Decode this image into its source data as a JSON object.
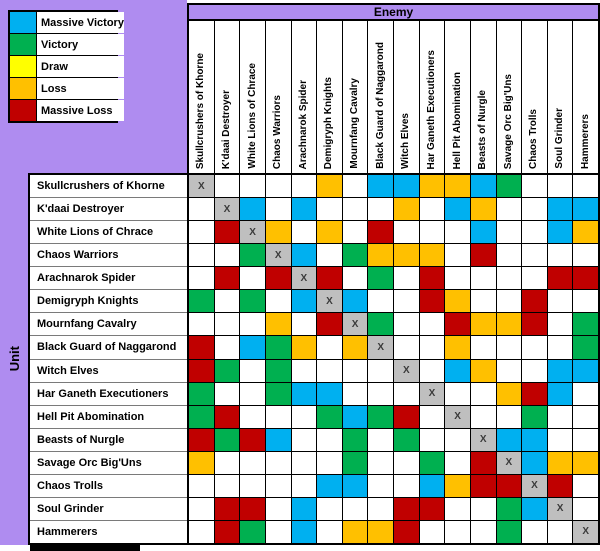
{
  "titles": {
    "enemy": "Enemy",
    "unit": "Unit"
  },
  "legend": [
    {
      "code": "MV",
      "label": "Massive Victory",
      "color": "#00B0F0"
    },
    {
      "code": "V",
      "label": "Victory",
      "color": "#00B050"
    },
    {
      "code": "D",
      "label": "Draw",
      "color": "#FFFF00"
    },
    {
      "code": "L",
      "label": "Loss",
      "color": "#FFC000"
    },
    {
      "code": "ML",
      "label": "Massive Loss",
      "color": "#C00000"
    }
  ],
  "self_marker": "X",
  "colors": {
    "MV": "#00B0F0",
    "V": "#00B050",
    "D": "#FFFF00",
    "L": "#FFC000",
    "ML": "#C00000",
    "X": "#BFBFBF",
    "": "#FFFFFF",
    "header_purple": "#AF8CF0",
    "grid_line": "#000000"
  },
  "units": [
    "Skullcrushers of Khorne",
    "K'daai Destroyer",
    "White Lions of Chrace",
    "Chaos Warriors",
    "Arachnarok Spider",
    "Demigryph Knights",
    "Mournfang Cavalry",
    "Black Guard of Naggarond",
    "Witch Elves",
    "Har Ganeth Executioners",
    "Hell Pit Abomination",
    "Beasts of Nurgle",
    "Savage Orc Big'Uns",
    "Chaos Trolls",
    "Soul Grinder",
    "Hammerers"
  ],
  "chart_data": {
    "type": "heatmap",
    "x_axis_title": "Enemy",
    "y_axis_title": "Unit",
    "row_categories": [
      "Skullcrushers of Khorne",
      "K'daai Destroyer",
      "White Lions of Chrace",
      "Chaos Warriors",
      "Arachnarok Spider",
      "Demigryph Knights",
      "Mournfang Cavalry",
      "Black Guard of Naggarond",
      "Witch Elves",
      "Har Ganeth Executioners",
      "Hell Pit Abomination",
      "Beasts of Nurgle",
      "Savage Orc Big'Uns",
      "Chaos Trolls",
      "Soul Grinder",
      "Hammerers"
    ],
    "col_categories": [
      "Skullcrushers of Khorne",
      "K'daai Destroyer",
      "White Lions of Chrace",
      "Chaos Warriors",
      "Arachnarok Spider",
      "Demigryph Knights",
      "Mournfang Cavalry",
      "Black Guard of Naggarond",
      "Witch Elves",
      "Har Ganeth Executioners",
      "Hell Pit Abomination",
      "Beasts of Nurgle",
      "Savage Orc Big'Uns",
      "Chaos Trolls",
      "Soul Grinder",
      "Hammerers"
    ],
    "value_legend": {
      "MV": "Massive Victory",
      "V": "Victory",
      "D": "Draw",
      "L": "Loss",
      "ML": "Massive Loss",
      "X": "Same unit (diagonal marker)",
      "": "blank (white cell)"
    },
    "legend_position": "top-left",
    "matrix": [
      [
        "X",
        "",
        "",
        "",
        "",
        "L",
        "",
        "MV",
        "MV",
        "L",
        "L",
        "MV",
        "V",
        "",
        "",
        ""
      ],
      [
        "",
        "X",
        "MV",
        "",
        "MV",
        "",
        "",
        "",
        "L",
        "",
        "MV",
        "L",
        "",
        "",
        "MV",
        "MV"
      ],
      [
        "",
        "ML",
        "X",
        "L",
        "",
        "L",
        "",
        "ML",
        "",
        "",
        "",
        "MV",
        "",
        "",
        "MV",
        "L"
      ],
      [
        "",
        "",
        "V",
        "X",
        "MV",
        "",
        "V",
        "L",
        "L",
        "L",
        "",
        "ML",
        "",
        "",
        "",
        ""
      ],
      [
        "",
        "ML",
        "",
        "ML",
        "X",
        "ML",
        "",
        "V",
        "",
        "ML",
        "",
        "",
        "",
        "",
        "ML",
        "ML"
      ],
      [
        "V",
        "",
        "V",
        "",
        "MV",
        "X",
        "MV",
        "",
        "",
        "ML",
        "L",
        "",
        "",
        "ML",
        "",
        ""
      ],
      [
        "",
        "",
        "",
        "L",
        "",
        "ML",
        "X",
        "V",
        "",
        "",
        "ML",
        "L",
        "L",
        "ML",
        "",
        "V"
      ],
      [
        "ML",
        "",
        "MV",
        "V",
        "L",
        "",
        "L",
        "X",
        "",
        "",
        "L",
        "",
        "",
        "",
        "",
        "V"
      ],
      [
        "ML",
        "V",
        "",
        "V",
        "",
        "",
        "",
        "",
        "X",
        "",
        "MV",
        "L",
        "",
        "",
        "MV",
        "MV"
      ],
      [
        "V",
        "",
        "",
        "V",
        "MV",
        "MV",
        "",
        "",
        "",
        "X",
        "",
        "",
        "L",
        "ML",
        "MV",
        ""
      ],
      [
        "V",
        "ML",
        "",
        "",
        "",
        "V",
        "MV",
        "V",
        "ML",
        "",
        "X",
        "",
        "",
        "V",
        "",
        ""
      ],
      [
        "ML",
        "V",
        "ML",
        "MV",
        "",
        "",
        "V",
        "",
        "V",
        "",
        "",
        "X",
        "MV",
        "MV",
        "",
        ""
      ],
      [
        "L",
        "",
        "",
        "",
        "",
        "",
        "V",
        "",
        "",
        "V",
        "",
        "ML",
        "X",
        "MV",
        "L",
        "L"
      ],
      [
        "",
        "",
        "",
        "",
        "",
        "MV",
        "MV",
        "",
        "",
        "MV",
        "L",
        "ML",
        "ML",
        "X",
        "ML",
        ""
      ],
      [
        "",
        "ML",
        "ML",
        "",
        "MV",
        "",
        "",
        "",
        "ML",
        "ML",
        "",
        "",
        "V",
        "MV",
        "X",
        ""
      ],
      [
        "",
        "ML",
        "V",
        "",
        "MV",
        "",
        "L",
        "L",
        "ML",
        "",
        "",
        "",
        "V",
        "",
        "",
        "X"
      ]
    ]
  }
}
